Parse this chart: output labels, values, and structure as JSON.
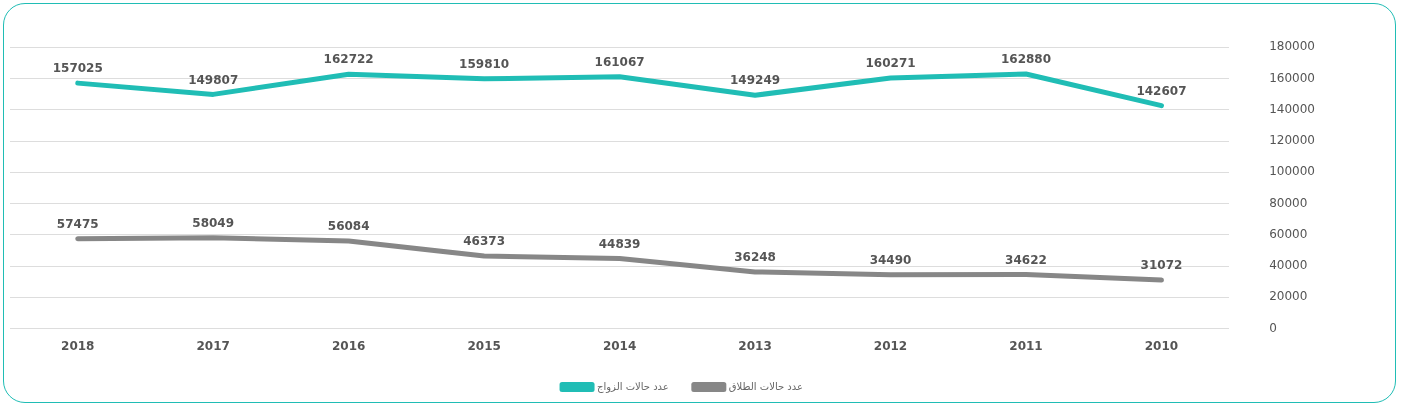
{
  "chart_data": {
    "type": "line",
    "categories": [
      "2018",
      "2017",
      "2016",
      "2015",
      "2014",
      "2013",
      "2012",
      "2011",
      "2010"
    ],
    "series": [
      {
        "name": "عدد حالات الزواج",
        "color": "#20bdb5",
        "values": [
          157025,
          149807,
          162722,
          159810,
          161067,
          149249,
          160271,
          162880,
          142607
        ]
      },
      {
        "name": "عدد حالات الطلاق",
        "color": "#878787",
        "values": [
          57475,
          58049,
          56084,
          46373,
          44839,
          36248,
          34490,
          34622,
          31072
        ]
      }
    ],
    "ylim": [
      0,
      180000
    ],
    "yticks": [
      0,
      20000,
      40000,
      60000,
      80000,
      100000,
      120000,
      140000,
      160000,
      180000
    ],
    "grid": "y",
    "legend": "bottom",
    "marker": "none",
    "line_style": "solid",
    "data_labels": true
  }
}
